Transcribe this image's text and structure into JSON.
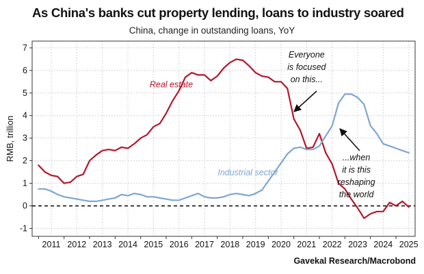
{
  "chart_data": {
    "type": "line",
    "title": "As China's banks cut property lending, loans to industry soared",
    "subtitle": "China, change in outstanding loans, YoY",
    "ylabel": "RMB, trillion",
    "xlabel": "",
    "source": "Gavekal Research/Macrobond",
    "ylim": [
      -1.35,
      7.3
    ],
    "xlim": [
      2010.75,
      2025.75
    ],
    "yticks": [
      "-1",
      "0",
      "1",
      "2",
      "3",
      "4",
      "5",
      "6",
      "7"
    ],
    "xticks": [
      "2011",
      "2012",
      "2013",
      "2014",
      "2015",
      "2016",
      "2017",
      "2018",
      "2019",
      "2020",
      "2021",
      "2022",
      "2023",
      "2024",
      "2025"
    ],
    "grid": true,
    "zero_line": "dashed",
    "series": [
      {
        "name": "Real estate",
        "color": "#b5152b",
        "x": [
          2011.0,
          2011.25,
          2011.5,
          2011.75,
          2012.0,
          2012.25,
          2012.5,
          2012.75,
          2013.0,
          2013.25,
          2013.5,
          2013.75,
          2014.0,
          2014.25,
          2014.5,
          2014.75,
          2015.0,
          2015.25,
          2015.5,
          2015.75,
          2016.0,
          2016.25,
          2016.5,
          2016.75,
          2017.0,
          2017.25,
          2017.5,
          2017.75,
          2018.0,
          2018.25,
          2018.5,
          2018.75,
          2019.0,
          2019.25,
          2019.5,
          2019.75,
          2020.0,
          2020.25,
          2020.5,
          2020.75,
          2021.0,
          2021.25,
          2021.5,
          2021.75,
          2022.0,
          2022.25,
          2022.5,
          2022.75,
          2023.0,
          2023.25,
          2023.5,
          2023.75,
          2024.0,
          2024.25,
          2024.5,
          2024.75,
          2025.0,
          2025.25,
          2025.5
        ],
        "y": [
          1.8,
          1.5,
          1.35,
          1.3,
          1.0,
          1.05,
          1.3,
          1.4,
          2.0,
          2.25,
          2.45,
          2.5,
          2.45,
          2.6,
          2.55,
          2.75,
          3.0,
          3.15,
          3.5,
          3.65,
          4.1,
          4.65,
          5.1,
          5.7,
          5.9,
          5.8,
          5.8,
          5.55,
          5.75,
          6.1,
          6.35,
          6.5,
          6.45,
          6.2,
          5.9,
          5.75,
          5.7,
          5.5,
          5.5,
          5.2,
          3.85,
          3.35,
          2.55,
          2.6,
          3.2,
          2.35,
          1.85,
          1.0,
          0.75,
          0.3,
          -0.1,
          -0.55,
          -0.35,
          -0.25,
          -0.25,
          0.15,
          0.0,
          0.2,
          -0.05
        ]
      },
      {
        "name": "Industrial sector",
        "color": "#7ea6cf",
        "x": [
          2011.0,
          2011.25,
          2011.5,
          2011.75,
          2012.0,
          2012.25,
          2012.5,
          2012.75,
          2013.0,
          2013.25,
          2013.5,
          2013.75,
          2014.0,
          2014.25,
          2014.5,
          2014.75,
          2015.0,
          2015.25,
          2015.5,
          2015.75,
          2016.0,
          2016.25,
          2016.5,
          2016.75,
          2017.0,
          2017.25,
          2017.5,
          2017.75,
          2018.0,
          2018.25,
          2018.5,
          2018.75,
          2019.0,
          2019.25,
          2019.5,
          2019.75,
          2020.0,
          2020.25,
          2020.5,
          2020.75,
          2021.0,
          2021.25,
          2021.5,
          2021.75,
          2022.0,
          2022.25,
          2022.5,
          2022.75,
          2023.0,
          2023.25,
          2023.5,
          2023.75,
          2024.0,
          2024.25,
          2024.5,
          2024.75,
          2025.0,
          2025.25,
          2025.5
        ],
        "y": [
          0.75,
          0.75,
          0.65,
          0.5,
          0.4,
          0.35,
          0.3,
          0.25,
          0.2,
          0.2,
          0.25,
          0.3,
          0.35,
          0.5,
          0.45,
          0.55,
          0.5,
          0.4,
          0.4,
          0.35,
          0.3,
          0.25,
          0.25,
          0.35,
          0.45,
          0.55,
          0.4,
          0.35,
          0.35,
          0.4,
          0.5,
          0.55,
          0.5,
          0.45,
          0.55,
          0.7,
          1.1,
          1.5,
          1.9,
          2.3,
          2.55,
          2.6,
          2.5,
          2.5,
          2.65,
          3.1,
          3.55,
          4.55,
          4.95,
          4.95,
          4.8,
          4.5,
          3.55,
          3.2,
          2.75,
          2.65,
          2.55,
          2.45,
          2.35
        ]
      }
    ],
    "annotations": [
      {
        "lines": [
          "Everyone",
          "is focused",
          "on this..."
        ]
      },
      {
        "lines": [
          "...when",
          "it is this",
          "reshaping",
          "the world"
        ]
      }
    ]
  }
}
